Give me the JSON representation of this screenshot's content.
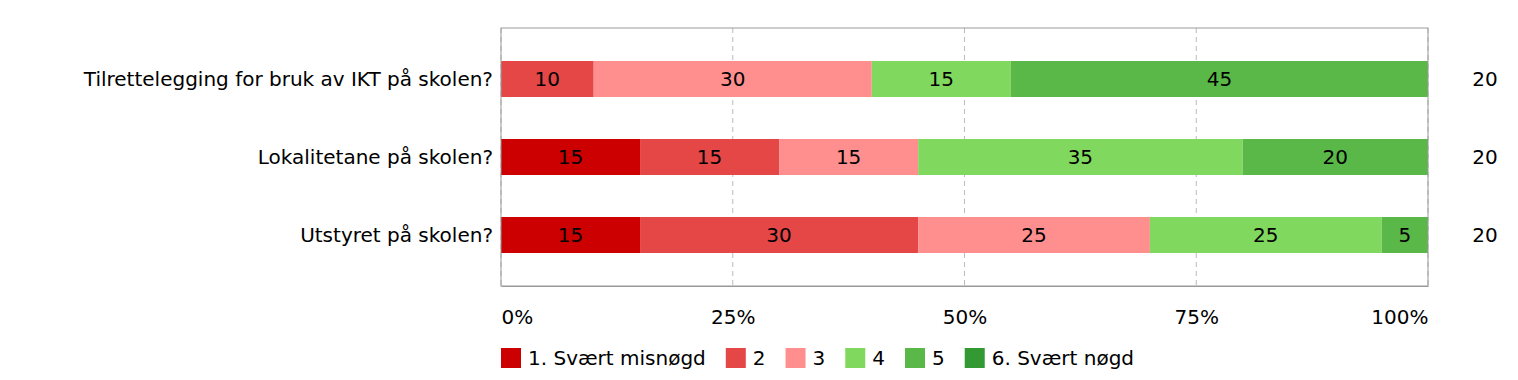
{
  "chart_data": {
    "type": "bar",
    "orientation": "horizontal",
    "stacked": true,
    "data_labels": true,
    "grid": true,
    "legend": "bottom",
    "categories": [
      "Tilrettelegging for bruk av IKT på skolen?",
      "Lokalitetane på skolen?",
      "Utstyret på skolen?"
    ],
    "series": [
      {
        "name": "1. Svært misnøgd",
        "color": "#cc0000",
        "values": [
          0,
          15,
          15
        ]
      },
      {
        "name": "2",
        "color": "#e54646",
        "values": [
          10,
          15,
          30
        ]
      },
      {
        "name": "3",
        "color": "#ff8f8f",
        "values": [
          30,
          15,
          25
        ]
      },
      {
        "name": "4",
        "color": "#80d85e",
        "values": [
          15,
          35,
          25
        ]
      },
      {
        "name": "5",
        "color": "#5ab848",
        "values": [
          45,
          20,
          5
        ]
      },
      {
        "name": "6. Svært nøgd",
        "color": "#339933",
        "values": [
          0,
          0,
          0
        ]
      }
    ],
    "totals": [
      20,
      20,
      20
    ],
    "xlim": [
      0,
      100
    ],
    "xticks": [
      {
        "value": 0,
        "label": "0%"
      },
      {
        "value": 25,
        "label": "25%"
      },
      {
        "value": 50,
        "label": "50%"
      },
      {
        "value": 75,
        "label": "75%"
      },
      {
        "value": 100,
        "label": "100%"
      }
    ]
  }
}
